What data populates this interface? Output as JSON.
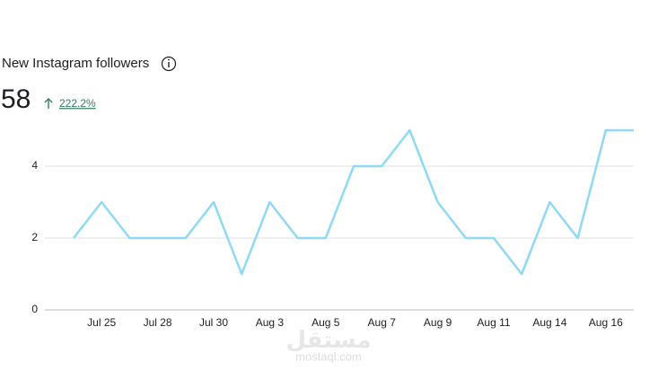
{
  "chart_data": {
    "type": "line",
    "title": "New Instagram followers",
    "total": 58,
    "change": "222.2%",
    "categories": [
      null,
      "Jul 25",
      null,
      "Jul 28",
      null,
      "Jul 30",
      null,
      "Aug 3",
      null,
      "Aug 5",
      null,
      "Aug 7",
      null,
      "Aug 9",
      null,
      "Aug 11",
      null,
      "Aug 14",
      null,
      "Aug 16",
      null
    ],
    "series": [
      {
        "name": "New Instagram followers",
        "color": "#8fd9f7",
        "values": [
          2,
          3,
          2,
          2,
          2,
          3,
          1,
          3,
          2,
          2,
          4,
          4,
          5,
          3,
          2,
          2,
          1,
          3,
          2,
          5,
          5
        ]
      }
    ],
    "ylim": [
      0,
      5
    ],
    "yticks": [
      0,
      2,
      4
    ],
    "grid": true,
    "watermark": [
      "مستقل",
      "mostaql.com"
    ]
  }
}
